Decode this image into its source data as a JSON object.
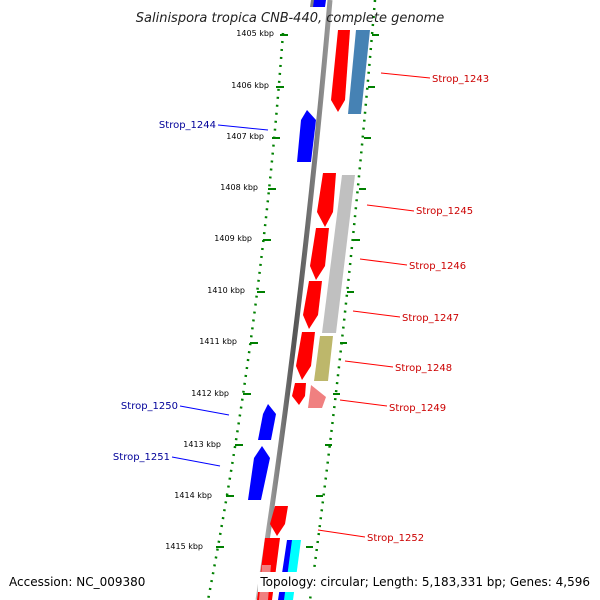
{
  "title": "Salinispora tropica CNB-440, complete genome",
  "footer": {
    "accession": "Accession: NC_009380",
    "summary": "Topology: circular; Length: 5,183,331 bp; Genes: 4,596"
  },
  "ticks": [
    "1405 kbp",
    "1406 kbp",
    "1407 kbp",
    "1408 kbp",
    "1409 kbp",
    "1410 kbp",
    "1411 kbp",
    "1412 kbp",
    "1413 kbp",
    "1414 kbp",
    "1415 kbp"
  ],
  "genes": {
    "forward": [
      "Strop_1243",
      "Strop_1245",
      "Strop_1246",
      "Strop_1247",
      "Strop_1248",
      "Strop_1249",
      "Strop_1252"
    ],
    "reverse": [
      "Strop_1244",
      "Strop_1250",
      "Strop_1251"
    ]
  },
  "colors": {
    "forward_gene": "#ff0000",
    "reverse_gene": "#0000ff",
    "forward_label": "#cc0000",
    "reverse_label": "#000099",
    "backbone": "#808080",
    "tick": "#008000",
    "cog_blue": "#4682b4",
    "cog_grey": "#c0c0c0",
    "cog_olive": "#bdb76b",
    "cog_pink": "#f08080",
    "cog_cyan": "#00ffff"
  }
}
